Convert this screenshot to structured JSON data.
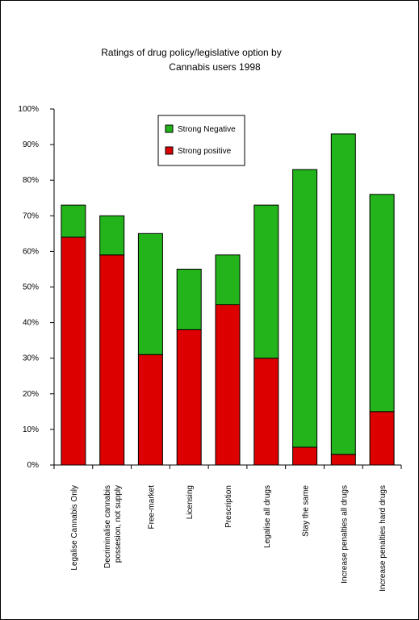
{
  "chart_data": {
    "type": "bar",
    "stacked": true,
    "title": "Ratings of drug policy/legislative option by\nCannabis users 1998",
    "xlabel": "",
    "ylabel": "",
    "ylim": [
      0,
      100
    ],
    "yticks": [
      "0%",
      "10%",
      "20%",
      "30%",
      "40%",
      "50%",
      "60%",
      "70%",
      "80%",
      "90%",
      "100%"
    ],
    "grid": false,
    "legend_position": "top-center",
    "categories": [
      "Legalise Cannabis Only",
      "Decriminalise cannabis\npossesion, not supply",
      "Free-market",
      "Licensing",
      "Prescription",
      "Legalise all drugs",
      "Stay the same",
      "Increase penalties all drugs",
      "Increase penalties hard drugs"
    ],
    "series": [
      {
        "name": "Strong positive",
        "color": "#dd0000",
        "values": [
          64,
          59,
          31,
          38,
          45,
          30,
          5,
          3,
          15
        ]
      },
      {
        "name": "Strong Negative",
        "color": "#22b41a",
        "values": [
          9,
          11,
          34,
          17,
          14,
          43,
          78,
          90,
          61
        ]
      }
    ],
    "legend_order": [
      "Strong Negative",
      "Strong positive"
    ]
  }
}
